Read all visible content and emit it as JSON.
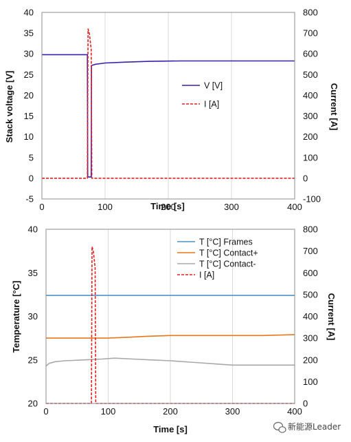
{
  "chart_data": [
    {
      "type": "line",
      "xlabel": "Time [s]",
      "ylabel": "Stack voltage [V]",
      "y2label": "Current [A]",
      "xlim": [
        0,
        400
      ],
      "ylim": [
        -5,
        40
      ],
      "y2lim": [
        -100,
        800
      ],
      "xticks": [
        "0",
        "100",
        "200",
        "300",
        "400"
      ],
      "yticks": [
        "-5",
        "0",
        "5",
        "10",
        "15",
        "20",
        "25",
        "30",
        "35",
        "40"
      ],
      "y2ticks": [
        "-100",
        "0",
        "100",
        "200",
        "300",
        "400",
        "500",
        "600",
        "700",
        "800"
      ],
      "grid": "vertical lines at x ticks",
      "legend_position": "center-right",
      "series": [
        {
          "name": "V [V]",
          "axis": "left",
          "color": "#3a1fa8",
          "style": "solid",
          "x": [
            0,
            70,
            72,
            72.5,
            76,
            78,
            78.5,
            85,
            100,
            130,
            170,
            220,
            300,
            400
          ],
          "y": [
            29.8,
            29.8,
            29.8,
            0.3,
            0.3,
            0.3,
            27.2,
            27.5,
            27.8,
            28.0,
            28.2,
            28.3,
            28.3,
            28.3
          ]
        },
        {
          "name": "I [A]",
          "axis": "right",
          "color": "#e02020",
          "style": "dashed",
          "x": [
            0,
            60,
            70,
            71,
            72,
            73,
            75,
            77,
            78,
            79,
            80,
            90,
            150,
            250,
            350,
            400
          ],
          "y": [
            0,
            0,
            0,
            0,
            0,
            720,
            700,
            650,
            620,
            0,
            0,
            0,
            0,
            0,
            0,
            0
          ]
        }
      ]
    },
    {
      "type": "line",
      "xlabel": "Time [s]",
      "ylabel": "Temperature [°C]",
      "y2label": "Current [A]",
      "xlim": [
        0,
        400
      ],
      "ylim": [
        20,
        40
      ],
      "y2lim": [
        0,
        800
      ],
      "xticks": [
        "0",
        "100",
        "200",
        "300",
        "400"
      ],
      "yticks": [
        "20",
        "25",
        "30",
        "35",
        "40"
      ],
      "y2ticks": [
        "0",
        "100",
        "200",
        "300",
        "400",
        "500",
        "600",
        "700",
        "800"
      ],
      "grid": "vertical lines at x ticks",
      "legend_position": "top-right",
      "series": [
        {
          "name": "T [°C] Frames",
          "axis": "left",
          "color": "#4b93c9",
          "style": "solid",
          "x": [
            0,
            50,
            100,
            150,
            200,
            250,
            300,
            350,
            400
          ],
          "y": [
            32.4,
            32.4,
            32.4,
            32.4,
            32.4,
            32.4,
            32.4,
            32.4,
            32.4
          ]
        },
        {
          "name": "T [°C] Contact+",
          "axis": "left",
          "color": "#e8761a",
          "style": "solid",
          "x": [
            0,
            50,
            100,
            130,
            160,
            200,
            250,
            300,
            350,
            400
          ],
          "y": [
            27.5,
            27.5,
            27.5,
            27.6,
            27.7,
            27.8,
            27.8,
            27.8,
            27.8,
            27.9
          ]
        },
        {
          "name": "T [°C] Contact-",
          "axis": "left",
          "color": "#a8a8a8",
          "style": "solid",
          "x": [
            0,
            5,
            15,
            30,
            60,
            90,
            110,
            140,
            170,
            200,
            240,
            280,
            300,
            350,
            400
          ],
          "y": [
            24.3,
            24.6,
            24.8,
            24.9,
            25.0,
            25.1,
            25.2,
            25.1,
            25.0,
            24.9,
            24.7,
            24.5,
            24.4,
            24.4,
            24.4
          ]
        },
        {
          "name": "I [A]",
          "axis": "right",
          "color": "#e02020",
          "style": "dashed",
          "x": [
            0,
            60,
            72,
            73,
            74,
            76,
            78,
            79,
            80,
            81,
            90,
            150,
            250,
            350,
            400
          ],
          "y": [
            0,
            0,
            0,
            0,
            720,
            700,
            650,
            620,
            0,
            0,
            0,
            0,
            0,
            0,
            0
          ]
        }
      ]
    }
  ],
  "watermark": {
    "text": "新能源Leader",
    "icon": "wechat-icon"
  }
}
